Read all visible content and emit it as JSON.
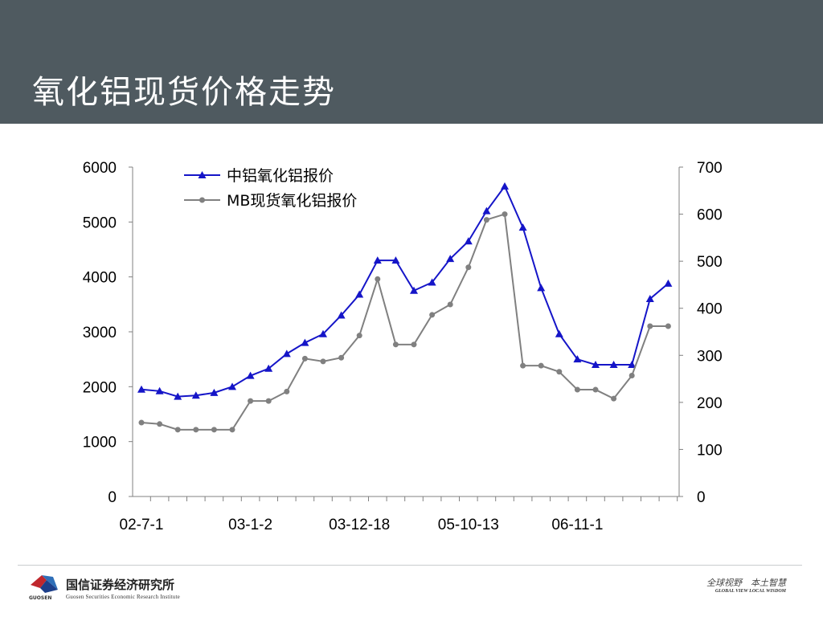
{
  "slide": {
    "title": "氧化铝现货价格走势"
  },
  "chart_data": {
    "type": "line",
    "grid": false,
    "legend_position": "top-left",
    "y_left": {
      "min": 0,
      "max": 6000,
      "ticks": [
        0,
        1000,
        2000,
        3000,
        4000,
        5000,
        6000
      ]
    },
    "y_right": {
      "min": 0,
      "max": 700,
      "ticks": [
        0,
        100,
        200,
        300,
        400,
        500,
        600,
        700
      ]
    },
    "x_tick_labels": [
      {
        "index": 0,
        "label": "02-7-1"
      },
      {
        "index": 6,
        "label": "03-1-2"
      },
      {
        "index": 12,
        "label": "03-12-18"
      },
      {
        "index": 18,
        "label": "05-10-13"
      },
      {
        "index": 24,
        "label": "06-11-1"
      }
    ],
    "point_count": 30,
    "series": [
      {
        "name": "中铝氧化铝报价",
        "axis": "left",
        "color": "#1515c8",
        "marker": "triangle",
        "values": [
          1950,
          1920,
          1820,
          1840,
          1890,
          2000,
          2200,
          2330,
          2600,
          2800,
          2960,
          3300,
          3680,
          4300,
          4300,
          3750,
          3900,
          4330,
          4650,
          5200,
          5650,
          4900,
          3800,
          2960,
          2500,
          2400,
          2400,
          2400,
          3600,
          3880
        ]
      },
      {
        "name": "MB现货氧化铝报价",
        "axis": "right",
        "color": "#808080",
        "marker": "circle",
        "values": [
          157,
          154,
          142,
          142,
          142,
          142,
          203,
          203,
          223,
          293,
          287,
          295,
          342,
          462,
          323,
          323,
          386,
          408,
          487,
          588,
          600,
          278,
          278,
          265,
          227,
          227,
          208,
          257,
          362,
          362
        ]
      }
    ]
  },
  "footer": {
    "company_cn": "国信证券经济研究所",
    "company_en": "Guosen Securities Economic Research Institute",
    "logo_text": "GUOSEN",
    "slogan_cn": "全球视野　本土智慧",
    "slogan_en": "GLOBAL VIEW    LOCAL WISDOM"
  }
}
